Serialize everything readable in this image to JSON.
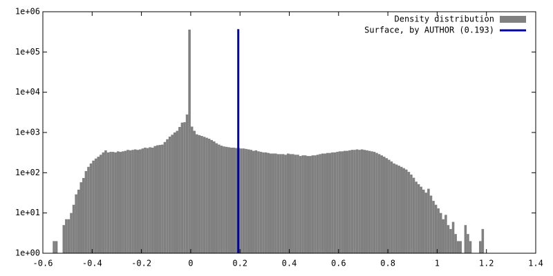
{
  "chart_data": {
    "type": "histogram",
    "log_y": true,
    "legend": "upper right",
    "name": "Density distribution",
    "color": "#808080",
    "bins": [
      -0.56,
      -0.55,
      -0.54,
      -0.53,
      -0.52,
      -0.51,
      -0.5,
      -0.49,
      -0.48,
      -0.47,
      -0.46,
      -0.45,
      -0.44,
      -0.43,
      -0.42,
      -0.41,
      -0.4,
      -0.39,
      -0.38,
      -0.37,
      -0.36,
      -0.35,
      -0.34,
      -0.33,
      -0.32,
      -0.31,
      -0.3,
      -0.29,
      -0.28,
      -0.27,
      -0.26,
      -0.25,
      -0.24,
      -0.23,
      -0.22,
      -0.21,
      -0.2,
      -0.19,
      -0.18,
      -0.17,
      -0.16,
      -0.15,
      -0.14,
      -0.13,
      -0.12,
      -0.11,
      -0.1,
      -0.09,
      -0.08,
      -0.07,
      -0.06,
      -0.05,
      -0.04,
      -0.03,
      -0.02,
      -0.01,
      0,
      0.01,
      0.02,
      0.03,
      0.04,
      0.05,
      0.06,
      0.07,
      0.08,
      0.09,
      0.1,
      0.11,
      0.12,
      0.13,
      0.14,
      0.15,
      0.16,
      0.17,
      0.18,
      0.19,
      0.2,
      0.21,
      0.22,
      0.23,
      0.24,
      0.25,
      0.26,
      0.27,
      0.28,
      0.29,
      0.3,
      0.31,
      0.32,
      0.33,
      0.34,
      0.35,
      0.36,
      0.37,
      0.38,
      0.39,
      0.4,
      0.41,
      0.42,
      0.43,
      0.44,
      0.45,
      0.46,
      0.47,
      0.48,
      0.49,
      0.5,
      0.51,
      0.52,
      0.53,
      0.54,
      0.55,
      0.56,
      0.57,
      0.58,
      0.59,
      0.6,
      0.61,
      0.62,
      0.63,
      0.64,
      0.65,
      0.66,
      0.67,
      0.68,
      0.69,
      0.7,
      0.71,
      0.72,
      0.73,
      0.74,
      0.75,
      0.76,
      0.77,
      0.78,
      0.79,
      0.8,
      0.81,
      0.82,
      0.83,
      0.84,
      0.85,
      0.86,
      0.87,
      0.88,
      0.89,
      0.9,
      0.91,
      0.92,
      0.93,
      0.94,
      0.95,
      0.96,
      0.97,
      0.98,
      0.99,
      1,
      1.01,
      1.02,
      1.03,
      1.04,
      1.05,
      1.06,
      1.07,
      1.08,
      1.09,
      1.1,
      1.11,
      1.12,
      1.13,
      1.14,
      1.15,
      1.16,
      1.17,
      1.18,
      1.19
    ],
    "counts": [
      2,
      2,
      0,
      0,
      5,
      7,
      7,
      10,
      16,
      29,
      38,
      58,
      74,
      110,
      140,
      170,
      200,
      225,
      250,
      280,
      320,
      360,
      320,
      330,
      330,
      320,
      340,
      330,
      340,
      350,
      370,
      360,
      370,
      380,
      370,
      380,
      400,
      420,
      410,
      430,
      420,
      460,
      480,
      490,
      500,
      580,
      680,
      790,
      880,
      1000,
      1100,
      1370,
      1760,
      1800,
      2800,
      360000,
      1400,
      1100,
      900,
      860,
      820,
      780,
      740,
      700,
      650,
      600,
      540,
      500,
      470,
      450,
      440,
      430,
      420,
      420,
      410,
      410,
      400,
      400,
      390,
      380,
      370,
      350,
      360,
      340,
      330,
      320,
      320,
      310,
      300,
      300,
      300,
      290,
      290,
      290,
      280,
      300,
      290,
      290,
      280,
      280,
      260,
      270,
      270,
      260,
      260,
      270,
      270,
      280,
      290,
      300,
      300,
      310,
      310,
      320,
      320,
      330,
      340,
      340,
      350,
      350,
      360,
      370,
      370,
      380,
      370,
      380,
      370,
      360,
      350,
      340,
      330,
      310,
      290,
      270,
      250,
      230,
      210,
      190,
      170,
      160,
      150,
      140,
      130,
      120,
      105,
      90,
      75,
      60,
      52,
      45,
      38,
      32,
      40,
      27,
      20,
      16,
      13,
      10,
      7,
      9,
      5,
      4,
      6,
      3,
      2,
      2,
      0,
      5,
      3,
      2,
      1,
      0,
      1,
      2,
      4
    ],
    "vline": {
      "name": "Surface, by AUTHOR (0.193)",
      "color": "#0000a0",
      "x": 0.193,
      "y": [
        1,
        370000
      ]
    },
    "xlim": [
      -0.6,
      1.4
    ],
    "ylim": [
      1,
      1000000
    ],
    "xticks": [
      -0.6,
      -0.4,
      -0.2,
      0,
      0.2,
      0.4,
      0.6,
      0.8,
      1,
      1.2,
      1.4
    ],
    "yticks": [
      {
        "value": 1,
        "label": "1e+00"
      },
      {
        "value": 10,
        "label": "1e+01"
      },
      {
        "value": 100,
        "label": "1e+02"
      },
      {
        "value": 1000,
        "label": "1e+03"
      },
      {
        "value": 10000,
        "label": "1e+04"
      },
      {
        "value": 100000,
        "label": "1e+05"
      },
      {
        "value": 1000000,
        "label": "1e+06"
      }
    ]
  }
}
